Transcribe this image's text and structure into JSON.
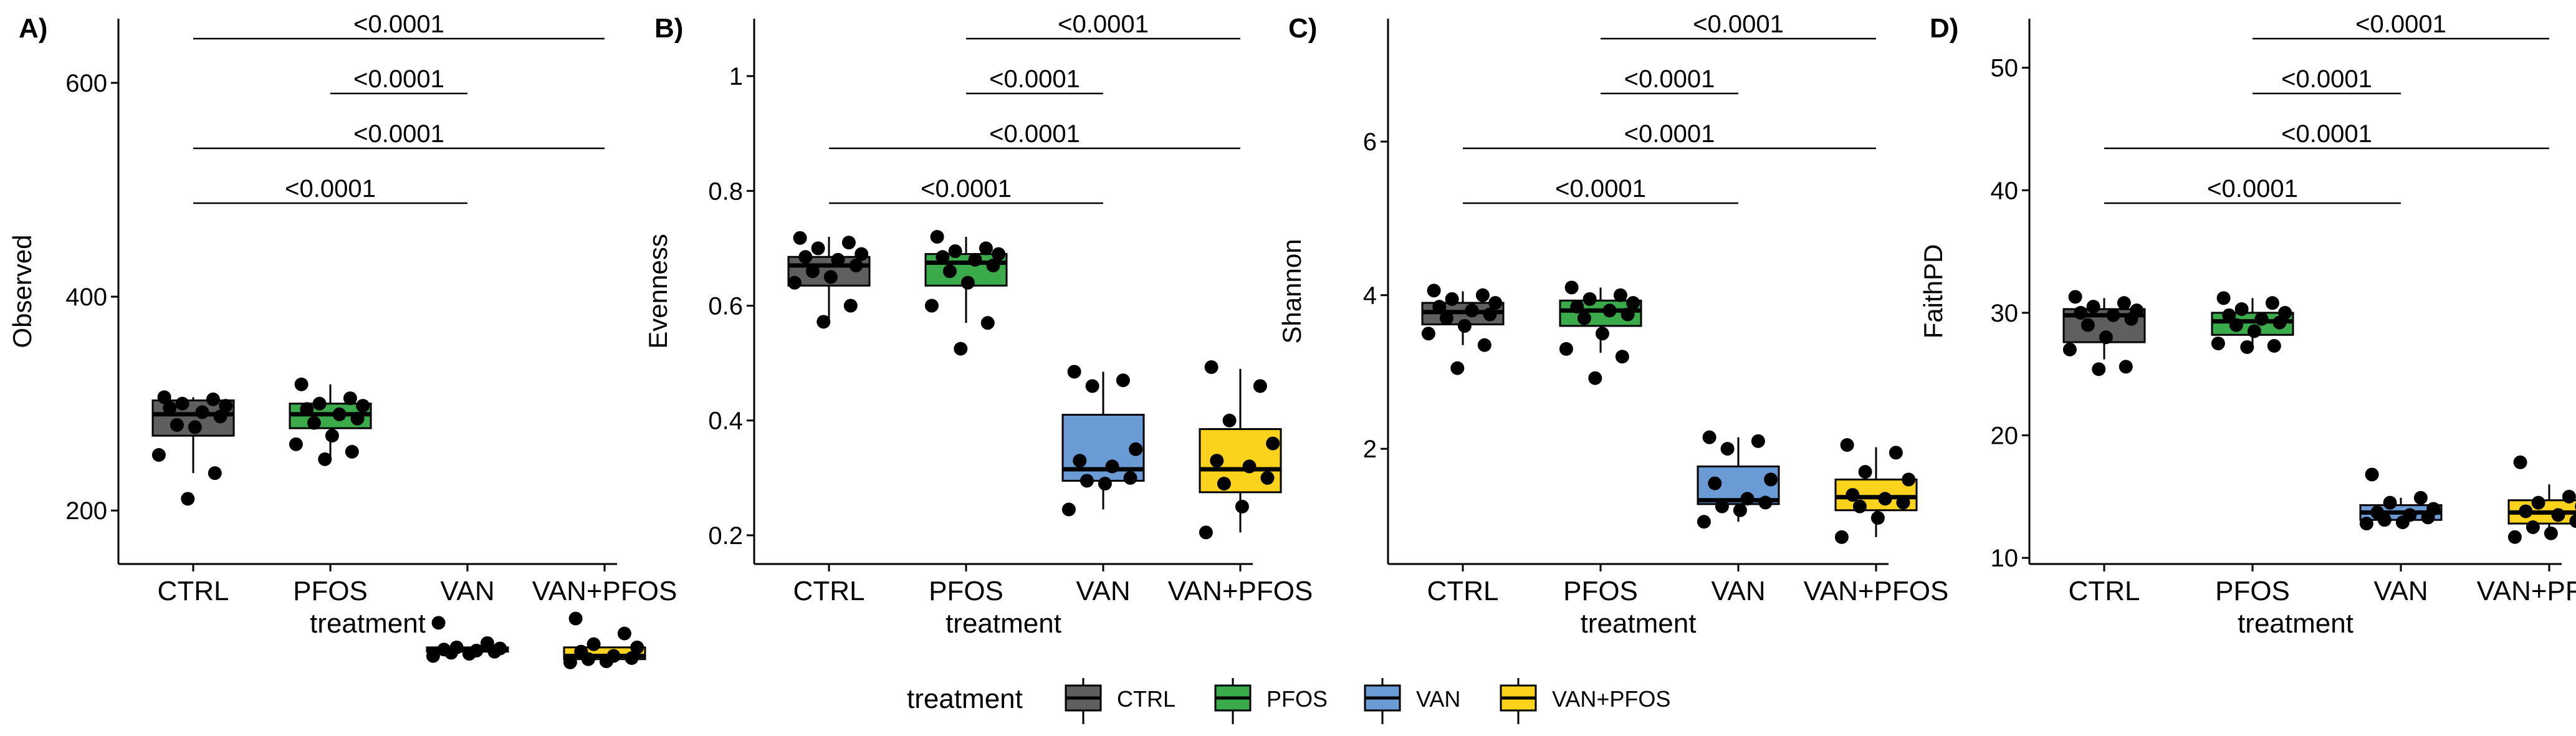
{
  "figure": {
    "legend": {
      "title": "treatment",
      "position": "bottom",
      "items": [
        {
          "label": "CTRL",
          "color": "#5f5f5f"
        },
        {
          "label": "PFOS",
          "color": "#3aaa4a"
        },
        {
          "label": "VAN",
          "color": "#6a9bd4"
        },
        {
          "label": "VAN+PFOS",
          "color": "#fbd21c"
        }
      ]
    }
  },
  "chart_data": [
    {
      "type": "box",
      "panel_label": "A)",
      "xlabel": "treatment",
      "ylabel": "Observed",
      "categories": [
        "CTRL",
        "PFOS",
        "VAN",
        "VAN+PFOS"
      ],
      "colors": [
        "#5f5f5f",
        "#3aaa4a",
        "#6a9bd4",
        "#fbd21c"
      ],
      "ylim": [
        150,
        660
      ],
      "yticks": [
        200,
        400,
        600
      ],
      "grid": false,
      "boxes": [
        {
          "q1": 270,
          "median": 290,
          "q3": 303,
          "wlo": 235,
          "whi": 306
        },
        {
          "q1": 277,
          "median": 290,
          "q3": 300,
          "wlo": 250,
          "whi": 318
        },
        {
          "q1": 68,
          "median": 70,
          "q3": 72,
          "wlo": 68,
          "whi": 72
        },
        {
          "q1": 61,
          "median": 64,
          "q3": 72,
          "wlo": 58,
          "whi": 72
        }
      ],
      "points": [
        [
          306,
          304,
          300,
          298,
          296,
          292,
          288,
          280,
          278,
          252,
          235,
          211
        ],
        [
          318,
          305,
          300,
          298,
          295,
          290,
          286,
          282,
          270,
          262,
          255,
          248
        ],
        [
          95,
          76,
          72,
          71,
          70,
          69,
          68,
          67,
          66,
          64
        ],
        [
          99,
          85,
          75,
          72,
          68,
          64,
          62,
          61,
          59,
          58
        ]
      ],
      "comparisons": [
        {
          "from": "CTRL",
          "to": "VAN+PFOS",
          "label": "<0.0001"
        },
        {
          "from": "PFOS",
          "to": "VAN",
          "label": "<0.0001"
        },
        {
          "from": "CTRL",
          "to": "VAN+PFOS",
          "label": "<0.0001"
        },
        {
          "from": "CTRL",
          "to": "VAN",
          "label": "<0.0001"
        }
      ]
    },
    {
      "type": "box",
      "panel_label": "B)",
      "xlabel": "treatment",
      "ylabel": "Evenness",
      "categories": [
        "CTRL",
        "PFOS",
        "VAN",
        "VAN+PFOS"
      ],
      "colors": [
        "#5f5f5f",
        "#3aaa4a",
        "#6a9bd4",
        "#fbd21c"
      ],
      "ylim": [
        0.15,
        1.1
      ],
      "yticks": [
        0.2,
        0.4,
        0.6,
        0.8,
        1.0
      ],
      "grid": false,
      "boxes": [
        {
          "q1": 0.635,
          "median": 0.67,
          "q3": 0.685,
          "wlo": 0.57,
          "whi": 0.72
        },
        {
          "q1": 0.635,
          "median": 0.675,
          "q3": 0.69,
          "wlo": 0.57,
          "whi": 0.72
        },
        {
          "q1": 0.295,
          "median": 0.315,
          "q3": 0.41,
          "wlo": 0.245,
          "whi": 0.485
        },
        {
          "q1": 0.275,
          "median": 0.315,
          "q3": 0.385,
          "wlo": 0.205,
          "whi": 0.49
        }
      ],
      "points": [
        [
          0.718,
          0.71,
          0.7,
          0.69,
          0.685,
          0.68,
          0.67,
          0.66,
          0.65,
          0.64,
          0.6,
          0.572
        ],
        [
          0.72,
          0.7,
          0.695,
          0.69,
          0.685,
          0.68,
          0.67,
          0.66,
          0.64,
          0.6,
          0.57,
          0.525
        ],
        [
          0.485,
          0.47,
          0.46,
          0.35,
          0.33,
          0.32,
          0.3,
          0.295,
          0.29,
          0.245
        ],
        [
          0.493,
          0.46,
          0.4,
          0.36,
          0.33,
          0.32,
          0.3,
          0.29,
          0.25,
          0.205
        ]
      ],
      "comparisons": [
        {
          "from": "PFOS",
          "to": "VAN+PFOS",
          "label": "<0.0001"
        },
        {
          "from": "PFOS",
          "to": "VAN",
          "label": "<0.0001"
        },
        {
          "from": "CTRL",
          "to": "VAN+PFOS",
          "label": "<0.0001"
        },
        {
          "from": "CTRL",
          "to": "VAN",
          "label": "<0.0001"
        }
      ]
    },
    {
      "type": "box",
      "panel_label": "C)",
      "xlabel": "treatment",
      "ylabel": "Shannon",
      "categories": [
        "CTRL",
        "PFOS",
        "VAN",
        "VAN+PFOS"
      ],
      "colors": [
        "#5f5f5f",
        "#3aaa4a",
        "#6a9bd4",
        "#fbd21c"
      ],
      "ylim": [
        0.5,
        7.6
      ],
      "yticks": [
        2,
        4,
        6
      ],
      "grid": false,
      "boxes": [
        {
          "q1": 3.62,
          "median": 3.78,
          "q3": 3.9,
          "wlo": 3.35,
          "whi": 4.05
        },
        {
          "q1": 3.6,
          "median": 3.8,
          "q3": 3.93,
          "wlo": 3.25,
          "whi": 4.1
        },
        {
          "q1": 1.28,
          "median": 1.33,
          "q3": 1.77,
          "wlo": 1.05,
          "whi": 2.15
        },
        {
          "q1": 1.2,
          "median": 1.37,
          "q3": 1.6,
          "wlo": 0.85,
          "whi": 2.02
        }
      ],
      "points": [
        [
          4.06,
          4.0,
          3.95,
          3.9,
          3.85,
          3.8,
          3.75,
          3.7,
          3.6,
          3.5,
          3.35,
          3.05
        ],
        [
          4.1,
          4.0,
          3.95,
          3.9,
          3.85,
          3.8,
          3.75,
          3.7,
          3.5,
          3.3,
          3.2,
          2.92
        ],
        [
          2.15,
          2.1,
          2.0,
          1.6,
          1.55,
          1.35,
          1.3,
          1.25,
          1.2,
          1.05
        ],
        [
          2.05,
          1.95,
          1.7,
          1.6,
          1.4,
          1.35,
          1.3,
          1.25,
          1.1,
          0.85
        ]
      ],
      "comparisons": [
        {
          "from": "PFOS",
          "to": "VAN+PFOS",
          "label": "<0.0001"
        },
        {
          "from": "PFOS",
          "to": "VAN",
          "label": "<0.0001"
        },
        {
          "from": "CTRL",
          "to": "VAN+PFOS",
          "label": "<0.0001"
        },
        {
          "from": "CTRL",
          "to": "VAN",
          "label": "<0.0001"
        }
      ]
    },
    {
      "type": "box",
      "panel_label": "D)",
      "xlabel": "treatment",
      "ylabel": "FaithPD",
      "categories": [
        "CTRL",
        "PFOS",
        "VAN",
        "VAN+PFOS"
      ],
      "colors": [
        "#5f5f5f",
        "#3aaa4a",
        "#6a9bd4",
        "#fbd21c"
      ],
      "ylim": [
        9.5,
        54
      ],
      "yticks": [
        10,
        20,
        30,
        40,
        50
      ],
      "grid": false,
      "boxes": [
        {
          "q1": 27.6,
          "median": 29.8,
          "q3": 30.3,
          "wlo": 26.2,
          "whi": 31.2
        },
        {
          "q1": 28.2,
          "median": 29.3,
          "q3": 30.0,
          "wlo": 27.0,
          "whi": 31.2
        },
        {
          "q1": 13.1,
          "median": 13.7,
          "q3": 14.3,
          "wlo": 12.8,
          "whi": 14.9
        },
        {
          "q1": 12.8,
          "median": 13.7,
          "q3": 14.7,
          "wlo": 11.5,
          "whi": 16.0
        }
      ],
      "points": [
        [
          31.3,
          30.8,
          30.5,
          30.2,
          30.0,
          29.8,
          29.5,
          29.0,
          28.0,
          27.0,
          25.6,
          25.4
        ],
        [
          31.2,
          30.8,
          30.3,
          30.0,
          29.8,
          29.5,
          29.2,
          29.0,
          28.5,
          27.5,
          27.3,
          27.2
        ],
        [
          16.8,
          14.9,
          14.5,
          14.0,
          13.7,
          13.5,
          13.3,
          13.1,
          12.9,
          12.8
        ],
        [
          17.8,
          15.0,
          14.5,
          14.2,
          13.8,
          13.5,
          13.0,
          12.5,
          12.0,
          11.7
        ]
      ],
      "comparisons": [
        {
          "from": "PFOS",
          "to": "VAN+PFOS",
          "label": "<0.0001"
        },
        {
          "from": "PFOS",
          "to": "VAN",
          "label": "<0.0001"
        },
        {
          "from": "CTRL",
          "to": "VAN+PFOS",
          "label": "<0.0001"
        },
        {
          "from": "CTRL",
          "to": "VAN",
          "label": "<0.0001"
        }
      ]
    }
  ]
}
